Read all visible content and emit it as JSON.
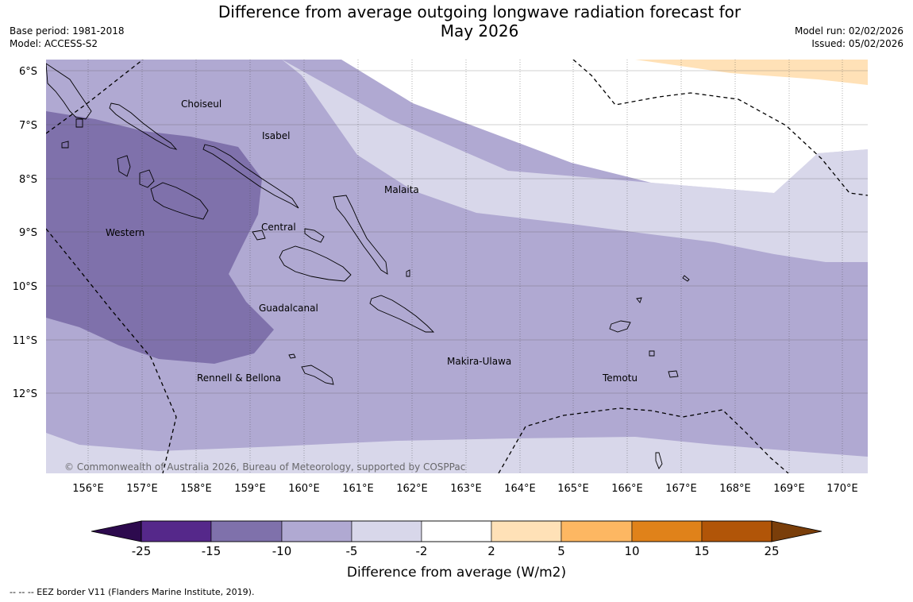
{
  "title_line1": "Difference from average outgoing longwave radiation forecast for",
  "title_line2": "May 2026",
  "base_period": "Base period: 1981-2018",
  "model": "Model: ACCESS-S2",
  "model_run": "Model run: 02/02/2026",
  "issued": "Issued: 05/02/2026",
  "copyright": "© Commonwealth of Australia 2026, Bureau of Meteorology, supported by COSPPac",
  "lat_labels": [
    "6°S",
    "7°S",
    "8°S",
    "9°S",
    "10°S",
    "11°S",
    "12°S"
  ],
  "lon_labels": [
    "156°E",
    "157°E",
    "158°E",
    "159°E",
    "160°E",
    "161°E",
    "162°E",
    "163°E",
    "164°E",
    "165°E",
    "166°E",
    "167°E",
    "168°E",
    "169°E",
    "170°E"
  ],
  "provinces": [
    "Choiseul",
    "Isabel",
    "Malaita",
    "Western",
    "Central",
    "Guadalcanal",
    "Makira-Ulawa",
    "Rennell & Bellona",
    "Temotu"
  ],
  "colorbar": {
    "title": "Difference from average (W/m2)",
    "ticks": [
      "-25",
      "-15",
      "-10",
      "-5",
      "-2",
      "2",
      "5",
      "10",
      "15",
      "25"
    ],
    "colors": {
      "under": "#2d0a4e",
      "bins": [
        "#55288a",
        "#7f71ab",
        "#b0a9d2",
        "#d8d7ea",
        "#ffffff",
        "#ffe1b7",
        "#fdb762",
        "#e0821a",
        "#b15508"
      ],
      "over": "#7a3e0a"
    }
  },
  "legend_note": "-- -- -- EEZ border V11 (Flanders Marine Institute, 2019)."
}
